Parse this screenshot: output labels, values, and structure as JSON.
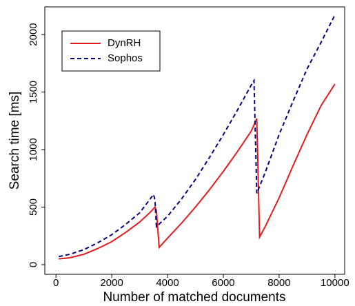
{
  "chart_data": {
    "type": "line",
    "x_label": "Number of matched documents",
    "y_label": "Search time [ms]",
    "xlim": [
      -400,
      10350
    ],
    "ylim": [
      -84,
      2240
    ],
    "xticks": [
      0,
      2000,
      4000,
      6000,
      8000,
      10000
    ],
    "yticks": [
      0,
      500,
      1000,
      1500,
      2000
    ],
    "legend": "top-left",
    "series": [
      {
        "name": "DynRH",
        "color": "#e41a1c",
        "dash": "solid",
        "x": [
          100,
          500,
          1000,
          1500,
          2000,
          2500,
          3000,
          3400,
          3550,
          3600,
          3700,
          4000,
          4500,
          5000,
          5500,
          6000,
          6500,
          7000,
          7200,
          7300,
          7500,
          8000,
          8500,
          9000,
          9500,
          10000
        ],
        "values": [
          50,
          60,
          90,
          140,
          200,
          280,
          370,
          460,
          500,
          470,
          150,
          230,
          360,
          500,
          650,
          810,
          980,
          1160,
          1270,
          240,
          330,
          580,
          860,
          1130,
          1380,
          1570
        ]
      },
      {
        "name": "Sophos",
        "color": "#00007f",
        "dash": "dashed",
        "x": [
          100,
          500,
          1000,
          1500,
          2000,
          2500,
          3000,
          3500,
          3550,
          3600,
          4000,
          4500,
          5000,
          5500,
          6000,
          6500,
          7000,
          7100,
          7200,
          7500,
          8000,
          8500,
          9000,
          9500,
          10000
        ],
        "values": [
          70,
          90,
          130,
          190,
          260,
          350,
          450,
          610,
          560,
          330,
          420,
          570,
          740,
          930,
          1130,
          1340,
          1560,
          1600,
          620,
          800,
          1130,
          1420,
          1700,
          1930,
          2170
        ]
      }
    ]
  }
}
